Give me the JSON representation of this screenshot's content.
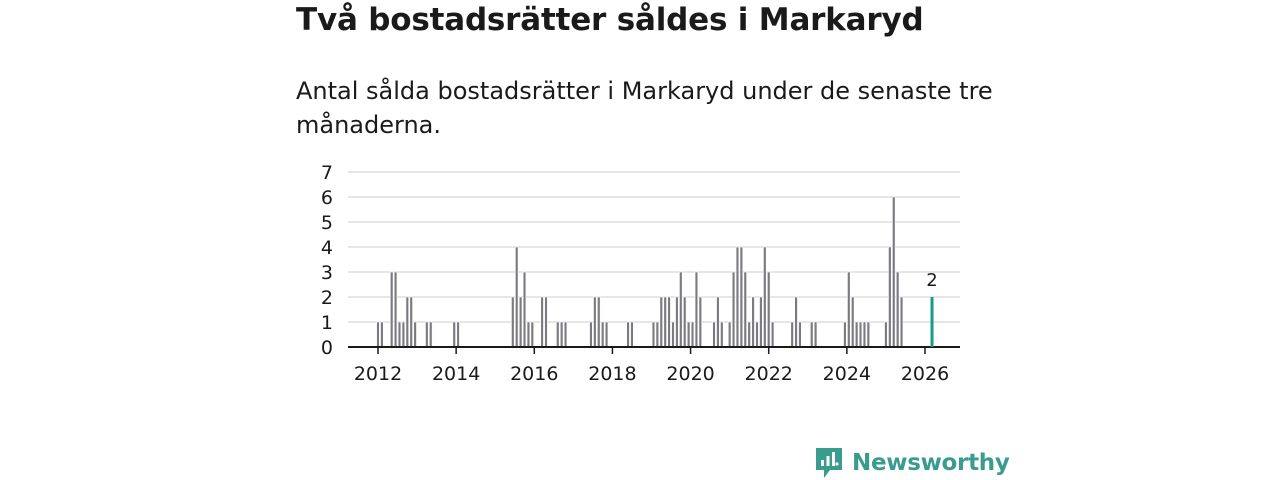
{
  "header": {
    "title": "Två bostadsrätter såldes i Markaryd",
    "subtitle": "Antal sålda bostadsrätter i Markaryd under de senaste tre månaderna."
  },
  "branding": {
    "name": "Newsworthy",
    "icon": "newsworthy-logo-icon",
    "color": "#3a9c8f"
  },
  "colors": {
    "bar": "#7b7a80",
    "highlight": "#1a9a8b",
    "grid": "#dddddd",
    "axis": "#1a1a1a",
    "text": "#1a1a1a"
  },
  "chart_data": {
    "type": "bar",
    "title": "Antal sålda bostadsrätter i Markaryd",
    "xlabel": "",
    "ylabel": "",
    "ylim": [
      0,
      7
    ],
    "yticks": [
      0,
      1,
      2,
      3,
      4,
      5,
      6,
      7
    ],
    "xlim": [
      2011.0,
      2027.0
    ],
    "xticks": [
      2012,
      2014,
      2016,
      2018,
      2020,
      2022,
      2024,
      2026
    ],
    "grid": true,
    "bar_width_years": 0.07,
    "series": [
      {
        "name": "Sålda bostadsrätter",
        "points": [
          {
            "x": 2012.0,
            "y": 1
          },
          {
            "x": 2012.1,
            "y": 1
          },
          {
            "x": 2012.35,
            "y": 3
          },
          {
            "x": 2012.45,
            "y": 3
          },
          {
            "x": 2012.55,
            "y": 1
          },
          {
            "x": 2012.65,
            "y": 1
          },
          {
            "x": 2012.75,
            "y": 2
          },
          {
            "x": 2012.85,
            "y": 2
          },
          {
            "x": 2012.95,
            "y": 1
          },
          {
            "x": 2013.25,
            "y": 1
          },
          {
            "x": 2013.35,
            "y": 1
          },
          {
            "x": 2013.95,
            "y": 1
          },
          {
            "x": 2014.05,
            "y": 1
          },
          {
            "x": 2015.45,
            "y": 2
          },
          {
            "x": 2015.55,
            "y": 4
          },
          {
            "x": 2015.65,
            "y": 2
          },
          {
            "x": 2015.75,
            "y": 3
          },
          {
            "x": 2015.85,
            "y": 1
          },
          {
            "x": 2015.95,
            "y": 1
          },
          {
            "x": 2016.2,
            "y": 2
          },
          {
            "x": 2016.3,
            "y": 2
          },
          {
            "x": 2016.6,
            "y": 1
          },
          {
            "x": 2016.7,
            "y": 1
          },
          {
            "x": 2016.8,
            "y": 1
          },
          {
            "x": 2017.45,
            "y": 1
          },
          {
            "x": 2017.55,
            "y": 2
          },
          {
            "x": 2017.65,
            "y": 2
          },
          {
            "x": 2017.75,
            "y": 1
          },
          {
            "x": 2017.85,
            "y": 1
          },
          {
            "x": 2018.4,
            "y": 1
          },
          {
            "x": 2018.5,
            "y": 1
          },
          {
            "x": 2019.05,
            "y": 1
          },
          {
            "x": 2019.15,
            "y": 1
          },
          {
            "x": 2019.25,
            "y": 2
          },
          {
            "x": 2019.35,
            "y": 2
          },
          {
            "x": 2019.45,
            "y": 2
          },
          {
            "x": 2019.55,
            "y": 1
          },
          {
            "x": 2019.65,
            "y": 2
          },
          {
            "x": 2019.75,
            "y": 3
          },
          {
            "x": 2019.85,
            "y": 2
          },
          {
            "x": 2019.95,
            "y": 1
          },
          {
            "x": 2020.05,
            "y": 1
          },
          {
            "x": 2020.15,
            "y": 3
          },
          {
            "x": 2020.25,
            "y": 2
          },
          {
            "x": 2020.6,
            "y": 1
          },
          {
            "x": 2020.7,
            "y": 2
          },
          {
            "x": 2020.8,
            "y": 1
          },
          {
            "x": 2021.0,
            "y": 1
          },
          {
            "x": 2021.1,
            "y": 3
          },
          {
            "x": 2021.2,
            "y": 4
          },
          {
            "x": 2021.3,
            "y": 4
          },
          {
            "x": 2021.4,
            "y": 3
          },
          {
            "x": 2021.5,
            "y": 1
          },
          {
            "x": 2021.6,
            "y": 2
          },
          {
            "x": 2021.7,
            "y": 1
          },
          {
            "x": 2021.8,
            "y": 2
          },
          {
            "x": 2021.9,
            "y": 4
          },
          {
            "x": 2022.0,
            "y": 3
          },
          {
            "x": 2022.1,
            "y": 1
          },
          {
            "x": 2022.6,
            "y": 1
          },
          {
            "x": 2022.7,
            "y": 2
          },
          {
            "x": 2022.8,
            "y": 1
          },
          {
            "x": 2023.1,
            "y": 1
          },
          {
            "x": 2023.2,
            "y": 1
          },
          {
            "x": 2023.95,
            "y": 1
          },
          {
            "x": 2024.05,
            "y": 3
          },
          {
            "x": 2024.15,
            "y": 2
          },
          {
            "x": 2024.25,
            "y": 1
          },
          {
            "x": 2024.35,
            "y": 1
          },
          {
            "x": 2024.45,
            "y": 1
          },
          {
            "x": 2024.55,
            "y": 1
          },
          {
            "x": 2025.0,
            "y": 1
          },
          {
            "x": 2025.1,
            "y": 4
          },
          {
            "x": 2025.2,
            "y": 6
          },
          {
            "x": 2025.3,
            "y": 3
          },
          {
            "x": 2025.4,
            "y": 2
          }
        ]
      }
    ],
    "highlight": {
      "x": 2026.18,
      "y": 2,
      "label": "2"
    }
  }
}
